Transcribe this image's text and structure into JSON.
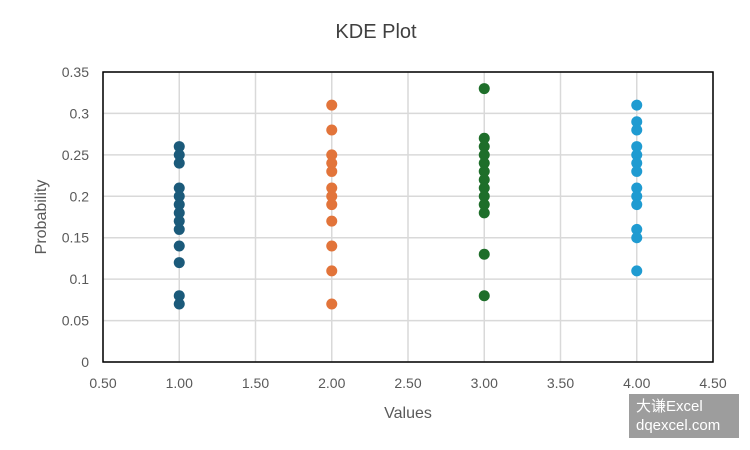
{
  "chart_data": {
    "type": "scatter",
    "title": "KDE Plot",
    "xlabel": "Values",
    "ylabel": "Probability",
    "xlim": [
      0.5,
      4.5
    ],
    "ylim": [
      0,
      0.35
    ],
    "x_ticks": [
      "0.50",
      "1.00",
      "1.50",
      "2.00",
      "2.50",
      "3.00",
      "3.50",
      "4.00",
      "4.50"
    ],
    "y_ticks": [
      "0",
      "0.05",
      "0.1",
      "0.15",
      "0.2",
      "0.25",
      "0.3",
      "0.35"
    ],
    "grid": true,
    "legend": "none",
    "series": [
      {
        "x": 1.0,
        "color": "#1b5a7a",
        "values": [
          0.26,
          0.25,
          0.24,
          0.21,
          0.2,
          0.19,
          0.18,
          0.17,
          0.16,
          0.14,
          0.12,
          0.08,
          0.07
        ]
      },
      {
        "x": 2.0,
        "color": "#e2743a",
        "values": [
          0.31,
          0.28,
          0.25,
          0.24,
          0.23,
          0.21,
          0.2,
          0.19,
          0.17,
          0.14,
          0.11,
          0.07
        ]
      },
      {
        "x": 3.0,
        "color": "#1e6e2a",
        "values": [
          0.33,
          0.27,
          0.26,
          0.25,
          0.24,
          0.23,
          0.22,
          0.21,
          0.2,
          0.19,
          0.18,
          0.13,
          0.08
        ]
      },
      {
        "x": 4.0,
        "color": "#1f9bd1",
        "values": [
          0.31,
          0.29,
          0.28,
          0.26,
          0.25,
          0.24,
          0.23,
          0.21,
          0.2,
          0.19,
          0.16,
          0.15,
          0.11
        ]
      }
    ]
  },
  "watermark": {
    "line1": "大谦Excel",
    "line2": "dqexcel.com"
  }
}
